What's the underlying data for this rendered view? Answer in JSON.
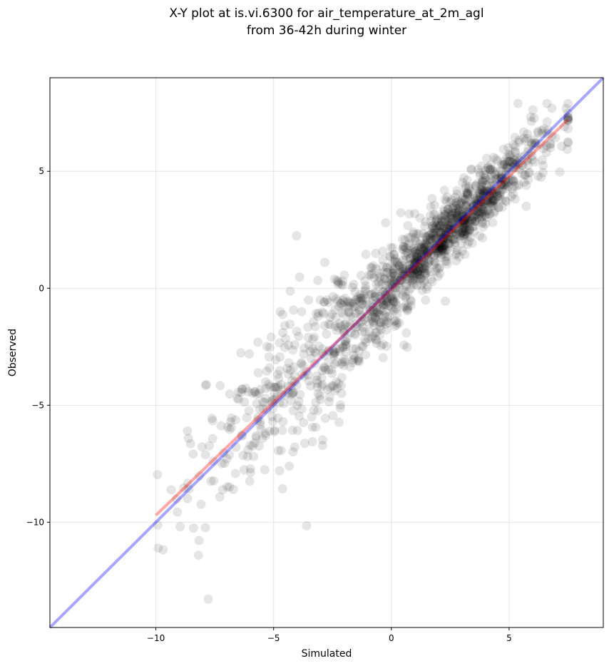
{
  "chart_data": {
    "type": "scatter",
    "title": [
      "X-Y plot at is.vi.6300 for air_temperature_at_2m_agl",
      "from 36-42h during winter"
    ],
    "xlabel": "Simulated",
    "ylabel": "Observed",
    "xlim": [
      -14.5,
      9.0
    ],
    "ylim": [
      -14.5,
      9.0
    ],
    "xticks": [
      -10,
      -5,
      0,
      5
    ],
    "yticks": [
      -10,
      -5,
      0,
      5
    ],
    "xtick_labels": [
      "−10",
      "−5",
      "0",
      "5"
    ],
    "ytick_labels": [
      "−10",
      "−5",
      "0",
      "5"
    ],
    "grid": true,
    "point_color": "#000000",
    "point_alpha": 0.1,
    "num_points": 1500,
    "fit_line": {
      "color": "#ff0000",
      "x": [
        -10.0,
        7.5
      ],
      "y": [
        -9.7,
        7.2
      ]
    },
    "identity_line": {
      "color": "#0000ff",
      "x": [
        -14.5,
        9.0
      ],
      "y": [
        -14.5,
        9.0
      ]
    },
    "scatter_description": "Approx. 1500 observations of simulated vs observed 2m air temperature, dense along the 1:1 line from about -8 to 7, with wider spread for simulated values below -2."
  }
}
